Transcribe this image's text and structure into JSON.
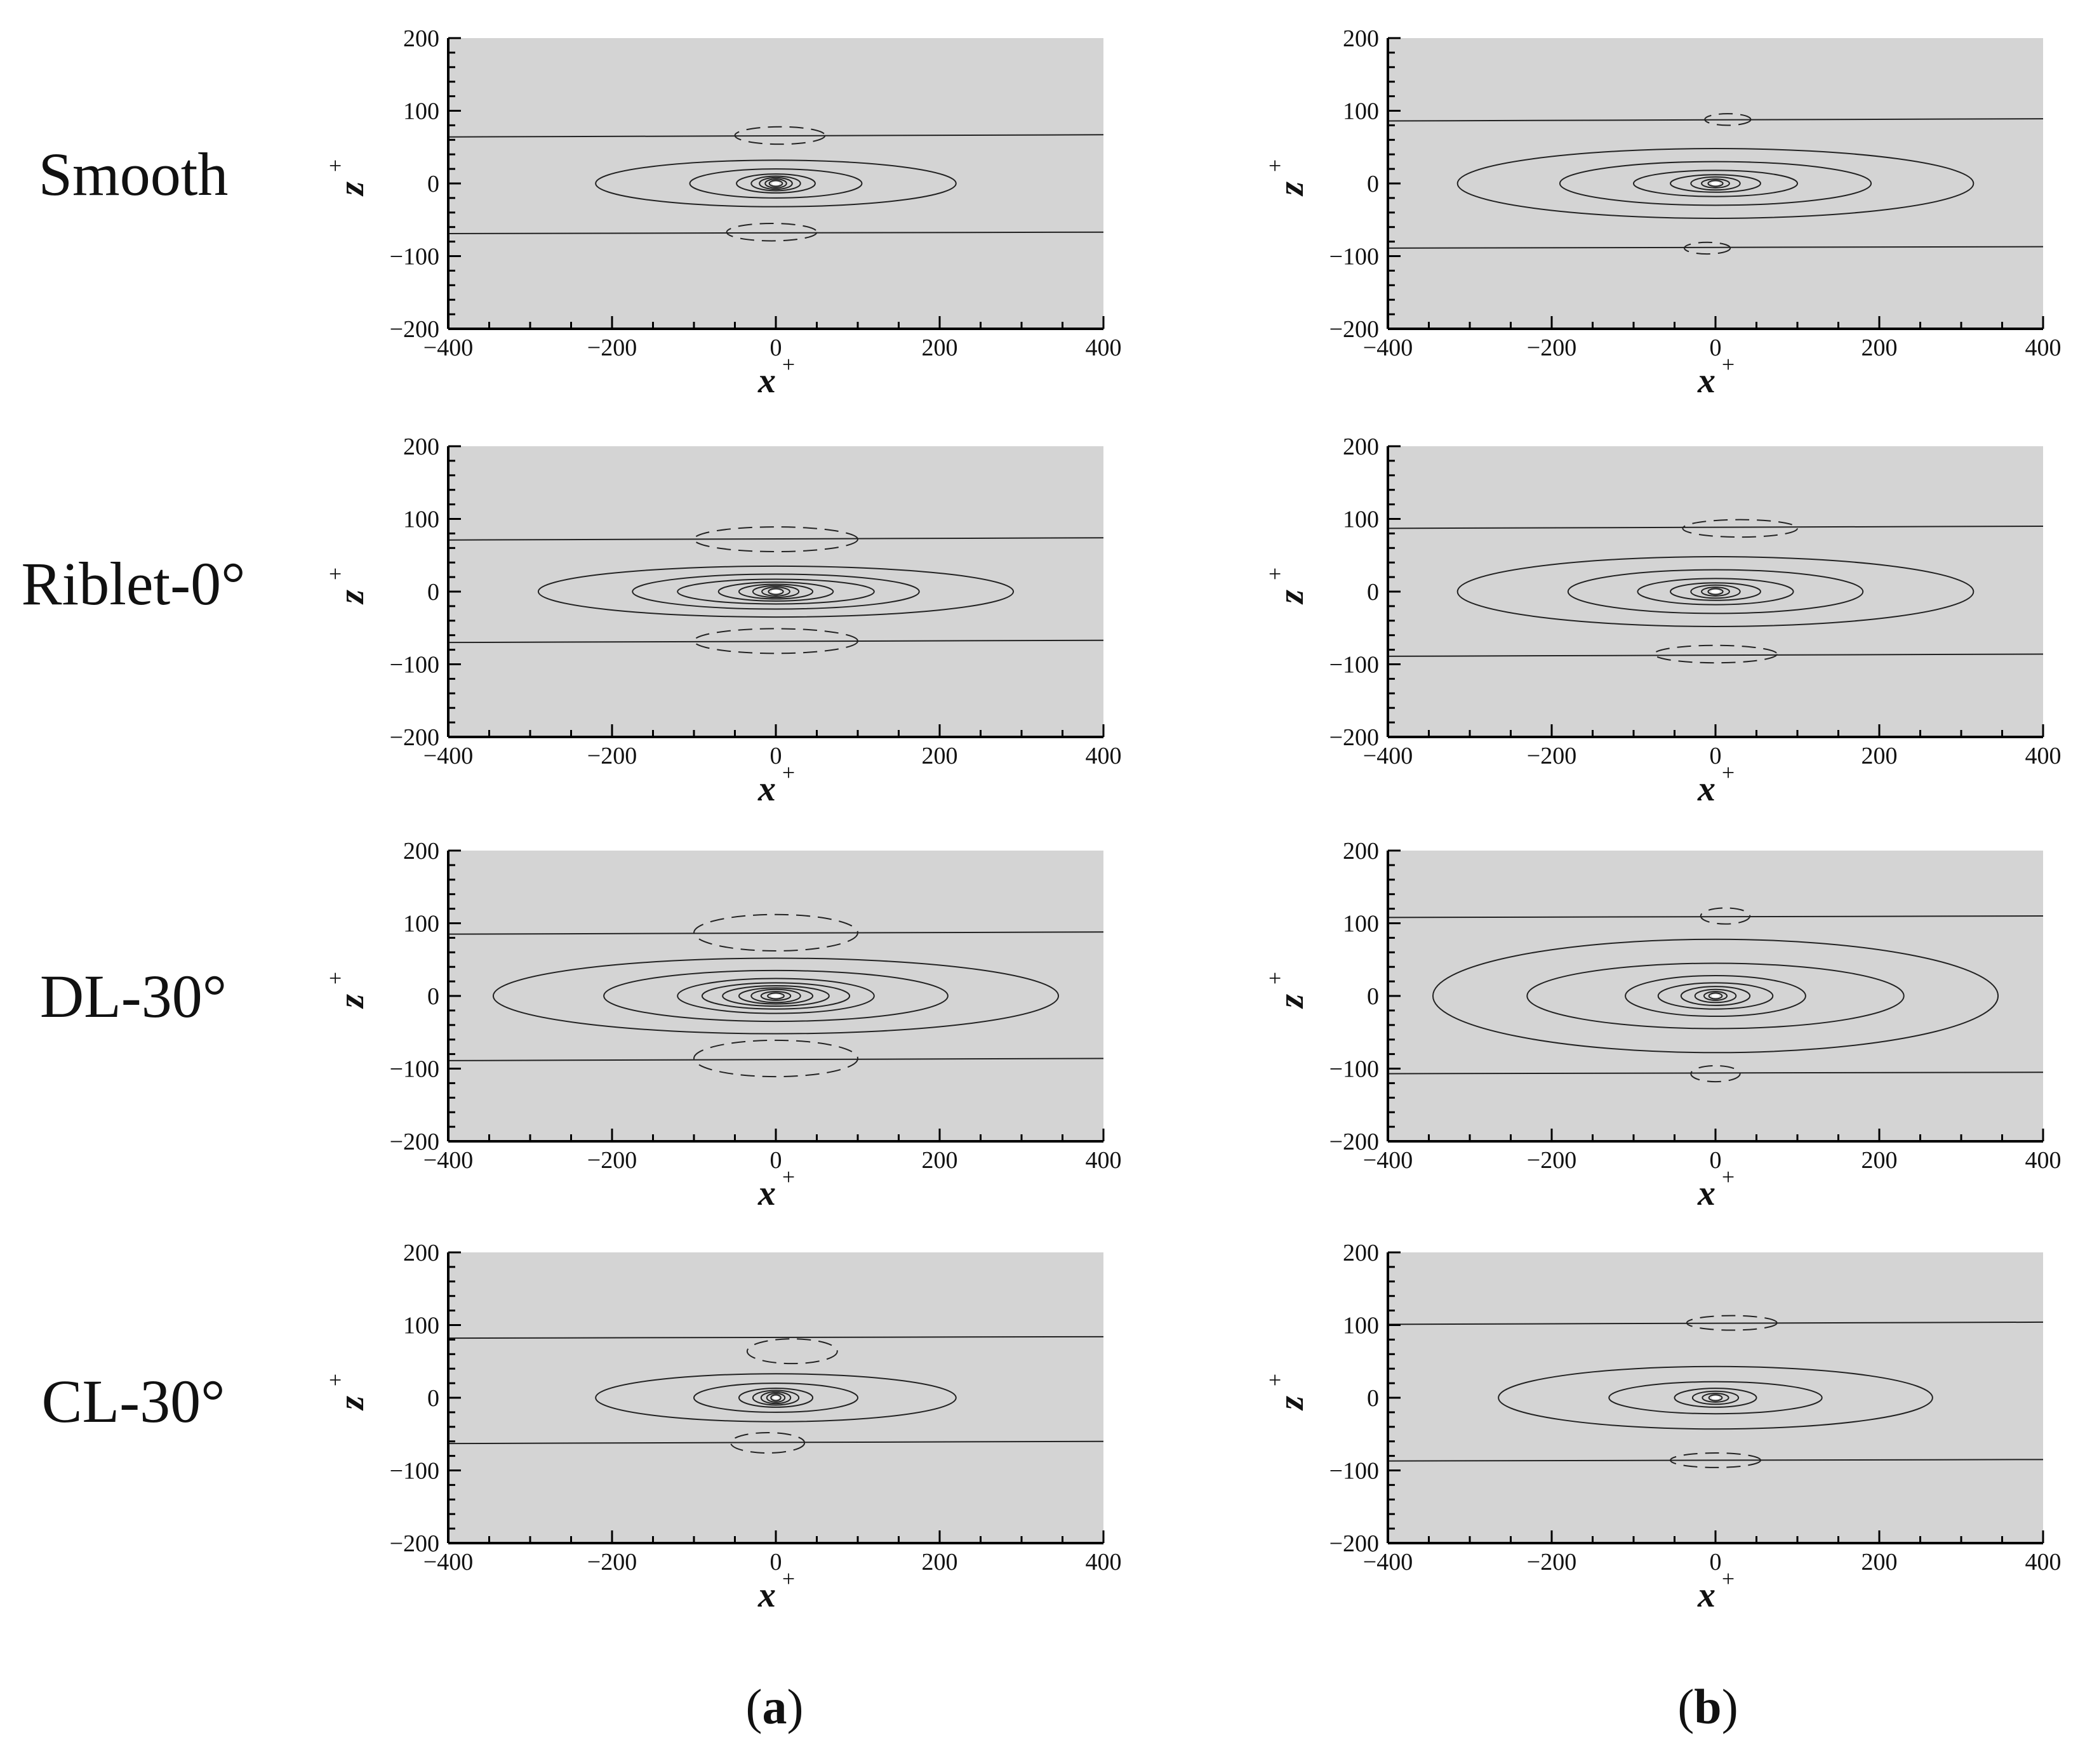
{
  "colors": {
    "plot_background": "#d4d4d4",
    "line": "#222222"
  },
  "row_labels": [
    "Smooth",
    "Riblet-0°",
    "DL-30°",
    "CL-30°"
  ],
  "column_captions": [
    {
      "open": "(",
      "letter": "a",
      "close": ")"
    },
    {
      "open": "(",
      "letter": "b",
      "close": ")"
    }
  ],
  "chart_data": [
    {
      "type": "contour",
      "panel": "a",
      "row": "Smooth",
      "xlabel": "x",
      "xlabel_sup": "+",
      "ylabel": "z",
      "ylabel_sup": "+",
      "xlim": [
        -400,
        400
      ],
      "ylim": [
        -200,
        200
      ],
      "x_ticks": [
        "−400",
        "−200",
        "0",
        "200",
        "400"
      ],
      "y_ticks": [
        "−200",
        "−100",
        "0",
        "100",
        "200"
      ],
      "horizontal_lines": [
        {
          "x": [
            -400,
            400
          ],
          "y": [
            64,
            67
          ]
        },
        {
          "x": [
            -400,
            400
          ],
          "y": [
            -69,
            -67
          ]
        }
      ],
      "solid_contours": [
        {
          "cx": 0,
          "cy": 0,
          "rx": 220,
          "ry": 32
        },
        {
          "cx": 0,
          "cy": 0,
          "rx": 105,
          "ry": 20
        },
        {
          "cx": 0,
          "cy": 0,
          "rx": 48,
          "ry": 13
        },
        {
          "cx": 0,
          "cy": 0,
          "rx": 30,
          "ry": 10
        },
        {
          "cx": 0,
          "cy": 0,
          "rx": 20,
          "ry": 8
        },
        {
          "cx": 0,
          "cy": 0,
          "rx": 13,
          "ry": 6
        },
        {
          "cx": 0,
          "cy": 0,
          "rx": 8,
          "ry": 4
        }
      ],
      "dashed_contours": [
        {
          "cx": 5,
          "cy": 66,
          "rx": 55,
          "ry": 12
        },
        {
          "cx": -5,
          "cy": -67,
          "rx": 55,
          "ry": 12
        }
      ]
    },
    {
      "type": "contour",
      "panel": "b",
      "row": "Smooth",
      "xlabel": "x",
      "xlabel_sup": "+",
      "ylabel": "z",
      "ylabel_sup": "+",
      "xlim": [
        -400,
        400
      ],
      "ylim": [
        -200,
        200
      ],
      "x_ticks": [
        "−400",
        "−200",
        "0",
        "200",
        "400"
      ],
      "y_ticks": [
        "−200",
        "−100",
        "0",
        "100",
        "200"
      ],
      "horizontal_lines": [
        {
          "x": [
            -400,
            400
          ],
          "y": [
            86,
            89
          ]
        },
        {
          "x": [
            -400,
            400
          ],
          "y": [
            -89,
            -87
          ]
        }
      ],
      "solid_contours": [
        {
          "cx": 0,
          "cy": 0,
          "rx": 315,
          "ry": 48
        },
        {
          "cx": 0,
          "cy": 0,
          "rx": 190,
          "ry": 30
        },
        {
          "cx": 0,
          "cy": 0,
          "rx": 100,
          "ry": 18
        },
        {
          "cx": 0,
          "cy": 0,
          "rx": 55,
          "ry": 12
        },
        {
          "cx": 0,
          "cy": 0,
          "rx": 30,
          "ry": 9
        },
        {
          "cx": 0,
          "cy": 0,
          "rx": 17,
          "ry": 6
        },
        {
          "cx": 0,
          "cy": 0,
          "rx": 9,
          "ry": 4
        }
      ],
      "dashed_contours": [
        {
          "cx": 15,
          "cy": 88,
          "rx": 28,
          "ry": 8
        },
        {
          "cx": -10,
          "cy": -89,
          "rx": 28,
          "ry": 8
        }
      ]
    },
    {
      "type": "contour",
      "panel": "a",
      "row": "Riblet-0°",
      "xlabel": "x",
      "xlabel_sup": "+",
      "ylabel": "z",
      "ylabel_sup": "+",
      "xlim": [
        -400,
        400
      ],
      "ylim": [
        -200,
        200
      ],
      "x_ticks": [
        "−400",
        "−200",
        "0",
        "200",
        "400"
      ],
      "y_ticks": [
        "−200",
        "−100",
        "0",
        "100",
        "200"
      ],
      "horizontal_lines": [
        {
          "x": [
            -400,
            400
          ],
          "y": [
            71,
            74
          ]
        },
        {
          "x": [
            -400,
            400
          ],
          "y": [
            -70,
            -67
          ]
        }
      ],
      "solid_contours": [
        {
          "cx": 0,
          "cy": 0,
          "rx": 290,
          "ry": 35
        },
        {
          "cx": 0,
          "cy": 0,
          "rx": 175,
          "ry": 24
        },
        {
          "cx": 0,
          "cy": 0,
          "rx": 120,
          "ry": 17
        },
        {
          "cx": 0,
          "cy": 0,
          "rx": 70,
          "ry": 13
        },
        {
          "cx": 0,
          "cy": 0,
          "rx": 45,
          "ry": 10
        },
        {
          "cx": 0,
          "cy": 0,
          "rx": 28,
          "ry": 8
        },
        {
          "cx": 0,
          "cy": 0,
          "rx": 17,
          "ry": 6
        },
        {
          "cx": 0,
          "cy": 0,
          "rx": 9,
          "ry": 4
        }
      ],
      "dashed_contours": [
        {
          "cx": 0,
          "cy": 72,
          "rx": 100,
          "ry": 17
        },
        {
          "cx": 0,
          "cy": -68,
          "rx": 100,
          "ry": 17
        }
      ]
    },
    {
      "type": "contour",
      "panel": "b",
      "row": "Riblet-0°",
      "xlabel": "x",
      "xlabel_sup": "+",
      "ylabel": "z",
      "ylabel_sup": "+",
      "xlim": [
        -400,
        400
      ],
      "ylim": [
        -200,
        200
      ],
      "x_ticks": [
        "−400",
        "−200",
        "0",
        "200",
        "400"
      ],
      "y_ticks": [
        "−200",
        "−100",
        "0",
        "100",
        "200"
      ],
      "horizontal_lines": [
        {
          "x": [
            -400,
            400
          ],
          "y": [
            87,
            90
          ]
        },
        {
          "x": [
            -400,
            400
          ],
          "y": [
            -89,
            -86
          ]
        }
      ],
      "solid_contours": [
        {
          "cx": 0,
          "cy": 0,
          "rx": 315,
          "ry": 48
        },
        {
          "cx": 0,
          "cy": 0,
          "rx": 180,
          "ry": 30
        },
        {
          "cx": 0,
          "cy": 0,
          "rx": 95,
          "ry": 18
        },
        {
          "cx": 0,
          "cy": 0,
          "rx": 55,
          "ry": 12
        },
        {
          "cx": 0,
          "cy": 0,
          "rx": 30,
          "ry": 9
        },
        {
          "cx": 0,
          "cy": 0,
          "rx": 17,
          "ry": 6
        },
        {
          "cx": 0,
          "cy": 0,
          "rx": 9,
          "ry": 4
        }
      ],
      "dashed_contours": [
        {
          "cx": 30,
          "cy": 87,
          "rx": 70,
          "ry": 12
        },
        {
          "cx": 0,
          "cy": -86,
          "rx": 75,
          "ry": 12
        }
      ]
    },
    {
      "type": "contour",
      "panel": "a",
      "row": "DL-30°",
      "xlabel": "x",
      "xlabel_sup": "+",
      "ylabel": "z",
      "ylabel_sup": "+",
      "xlim": [
        -400,
        400
      ],
      "ylim": [
        -200,
        200
      ],
      "x_ticks": [
        "−400",
        "−200",
        "0",
        "200",
        "400"
      ],
      "y_ticks": [
        "−200",
        "−100",
        "0",
        "100",
        "200"
      ],
      "horizontal_lines": [
        {
          "x": [
            -400,
            400
          ],
          "y": [
            85,
            88
          ]
        },
        {
          "x": [
            -400,
            400
          ],
          "y": [
            -89,
            -86
          ]
        }
      ],
      "solid_contours": [
        {
          "cx": 0,
          "cy": 0,
          "rx": 345,
          "ry": 52
        },
        {
          "cx": 0,
          "cy": 0,
          "rx": 210,
          "ry": 35
        },
        {
          "cx": 0,
          "cy": 0,
          "rx": 120,
          "ry": 24
        },
        {
          "cx": 0,
          "cy": 0,
          "rx": 90,
          "ry": 18
        },
        {
          "cx": 0,
          "cy": 0,
          "rx": 65,
          "ry": 14
        },
        {
          "cx": 0,
          "cy": 0,
          "rx": 45,
          "ry": 11
        },
        {
          "cx": 0,
          "cy": 0,
          "rx": 30,
          "ry": 9
        },
        {
          "cx": 0,
          "cy": 0,
          "rx": 18,
          "ry": 6
        },
        {
          "cx": 0,
          "cy": 0,
          "rx": 10,
          "ry": 4
        }
      ],
      "dashed_contours": [
        {
          "cx": 0,
          "cy": 87,
          "rx": 100,
          "ry": 25
        },
        {
          "cx": 0,
          "cy": -86,
          "rx": 100,
          "ry": 25
        }
      ]
    },
    {
      "type": "contour",
      "panel": "b",
      "row": "DL-30°",
      "xlabel": "x",
      "xlabel_sup": "+",
      "ylabel": "z",
      "ylabel_sup": "+",
      "xlim": [
        -400,
        400
      ],
      "ylim": [
        -200,
        200
      ],
      "x_ticks": [
        "−400",
        "−200",
        "0",
        "200",
        "400"
      ],
      "y_ticks": [
        "−200",
        "−100",
        "0",
        "100",
        "200"
      ],
      "horizontal_lines": [
        {
          "x": [
            -400,
            400
          ],
          "y": [
            108,
            110
          ]
        },
        {
          "x": [
            -400,
            400
          ],
          "y": [
            -107,
            -105
          ]
        }
      ],
      "solid_contours": [
        {
          "cx": 0,
          "cy": 0,
          "rx": 345,
          "ry": 78
        },
        {
          "cx": 0,
          "cy": 0,
          "rx": 230,
          "ry": 45
        },
        {
          "cx": 0,
          "cy": 0,
          "rx": 110,
          "ry": 28
        },
        {
          "cx": 0,
          "cy": 0,
          "rx": 70,
          "ry": 18
        },
        {
          "cx": 0,
          "cy": 0,
          "rx": 42,
          "ry": 13
        },
        {
          "cx": 0,
          "cy": 0,
          "rx": 25,
          "ry": 9
        },
        {
          "cx": 0,
          "cy": 0,
          "rx": 14,
          "ry": 6
        },
        {
          "cx": 0,
          "cy": 0,
          "rx": 8,
          "ry": 4
        }
      ],
      "dashed_contours": [
        {
          "cx": 12,
          "cy": 110,
          "rx": 30,
          "ry": 11
        },
        {
          "cx": 0,
          "cy": -107,
          "rx": 30,
          "ry": 11
        }
      ]
    },
    {
      "type": "contour",
      "panel": "a",
      "row": "CL-30°",
      "xlabel": "x",
      "xlabel_sup": "+",
      "ylabel": "z",
      "ylabel_sup": "+",
      "xlim": [
        -400,
        400
      ],
      "ylim": [
        -200,
        200
      ],
      "x_ticks": [
        "−400",
        "−200",
        "0",
        "200",
        "400"
      ],
      "y_ticks": [
        "−200",
        "−100",
        "0",
        "100",
        "200"
      ],
      "horizontal_lines": [
        {
          "x": [
            -400,
            400
          ],
          "y": [
            82,
            84
          ]
        },
        {
          "x": [
            -400,
            400
          ],
          "y": [
            -63,
            -60
          ]
        }
      ],
      "solid_contours": [
        {
          "cx": 0,
          "cy": 0,
          "rx": 220,
          "ry": 33
        },
        {
          "cx": 0,
          "cy": 0,
          "rx": 100,
          "ry": 20
        },
        {
          "cx": 0,
          "cy": 0,
          "rx": 45,
          "ry": 13
        },
        {
          "cx": 0,
          "cy": 0,
          "rx": 28,
          "ry": 10
        },
        {
          "cx": 0,
          "cy": 0,
          "rx": 18,
          "ry": 8
        },
        {
          "cx": 0,
          "cy": 0,
          "rx": 11,
          "ry": 6
        },
        {
          "cx": 0,
          "cy": 0,
          "rx": 6,
          "ry": 4
        }
      ],
      "dashed_contours": [
        {
          "cx": 20,
          "cy": 64,
          "rx": 55,
          "ry": 17
        },
        {
          "cx": -10,
          "cy": -62,
          "rx": 45,
          "ry": 14
        }
      ]
    },
    {
      "type": "contour",
      "panel": "b",
      "row": "CL-30°",
      "xlabel": "x",
      "xlabel_sup": "+",
      "ylabel": "z",
      "ylabel_sup": "+",
      "xlim": [
        -400,
        400
      ],
      "ylim": [
        -200,
        200
      ],
      "x_ticks": [
        "−400",
        "−200",
        "0",
        "200",
        "400"
      ],
      "y_ticks": [
        "−200",
        "−100",
        "0",
        "100",
        "200"
      ],
      "horizontal_lines": [
        {
          "x": [
            -400,
            400
          ],
          "y": [
            101,
            104
          ]
        },
        {
          "x": [
            -400,
            400
          ],
          "y": [
            -87,
            -85
          ]
        }
      ],
      "solid_contours": [
        {
          "cx": 0,
          "cy": 0,
          "rx": 265,
          "ry": 43
        },
        {
          "cx": 0,
          "cy": 0,
          "rx": 130,
          "ry": 22
        },
        {
          "cx": 0,
          "cy": 0,
          "rx": 50,
          "ry": 13
        },
        {
          "cx": 0,
          "cy": 0,
          "rx": 28,
          "ry": 9
        },
        {
          "cx": 0,
          "cy": 0,
          "rx": 16,
          "ry": 6
        },
        {
          "cx": 0,
          "cy": 0,
          "rx": 8,
          "ry": 4
        }
      ],
      "dashed_contours": [
        {
          "cx": 20,
          "cy": 103,
          "rx": 55,
          "ry": 10
        },
        {
          "cx": 0,
          "cy": -86,
          "rx": 55,
          "ry": 10
        }
      ]
    }
  ]
}
